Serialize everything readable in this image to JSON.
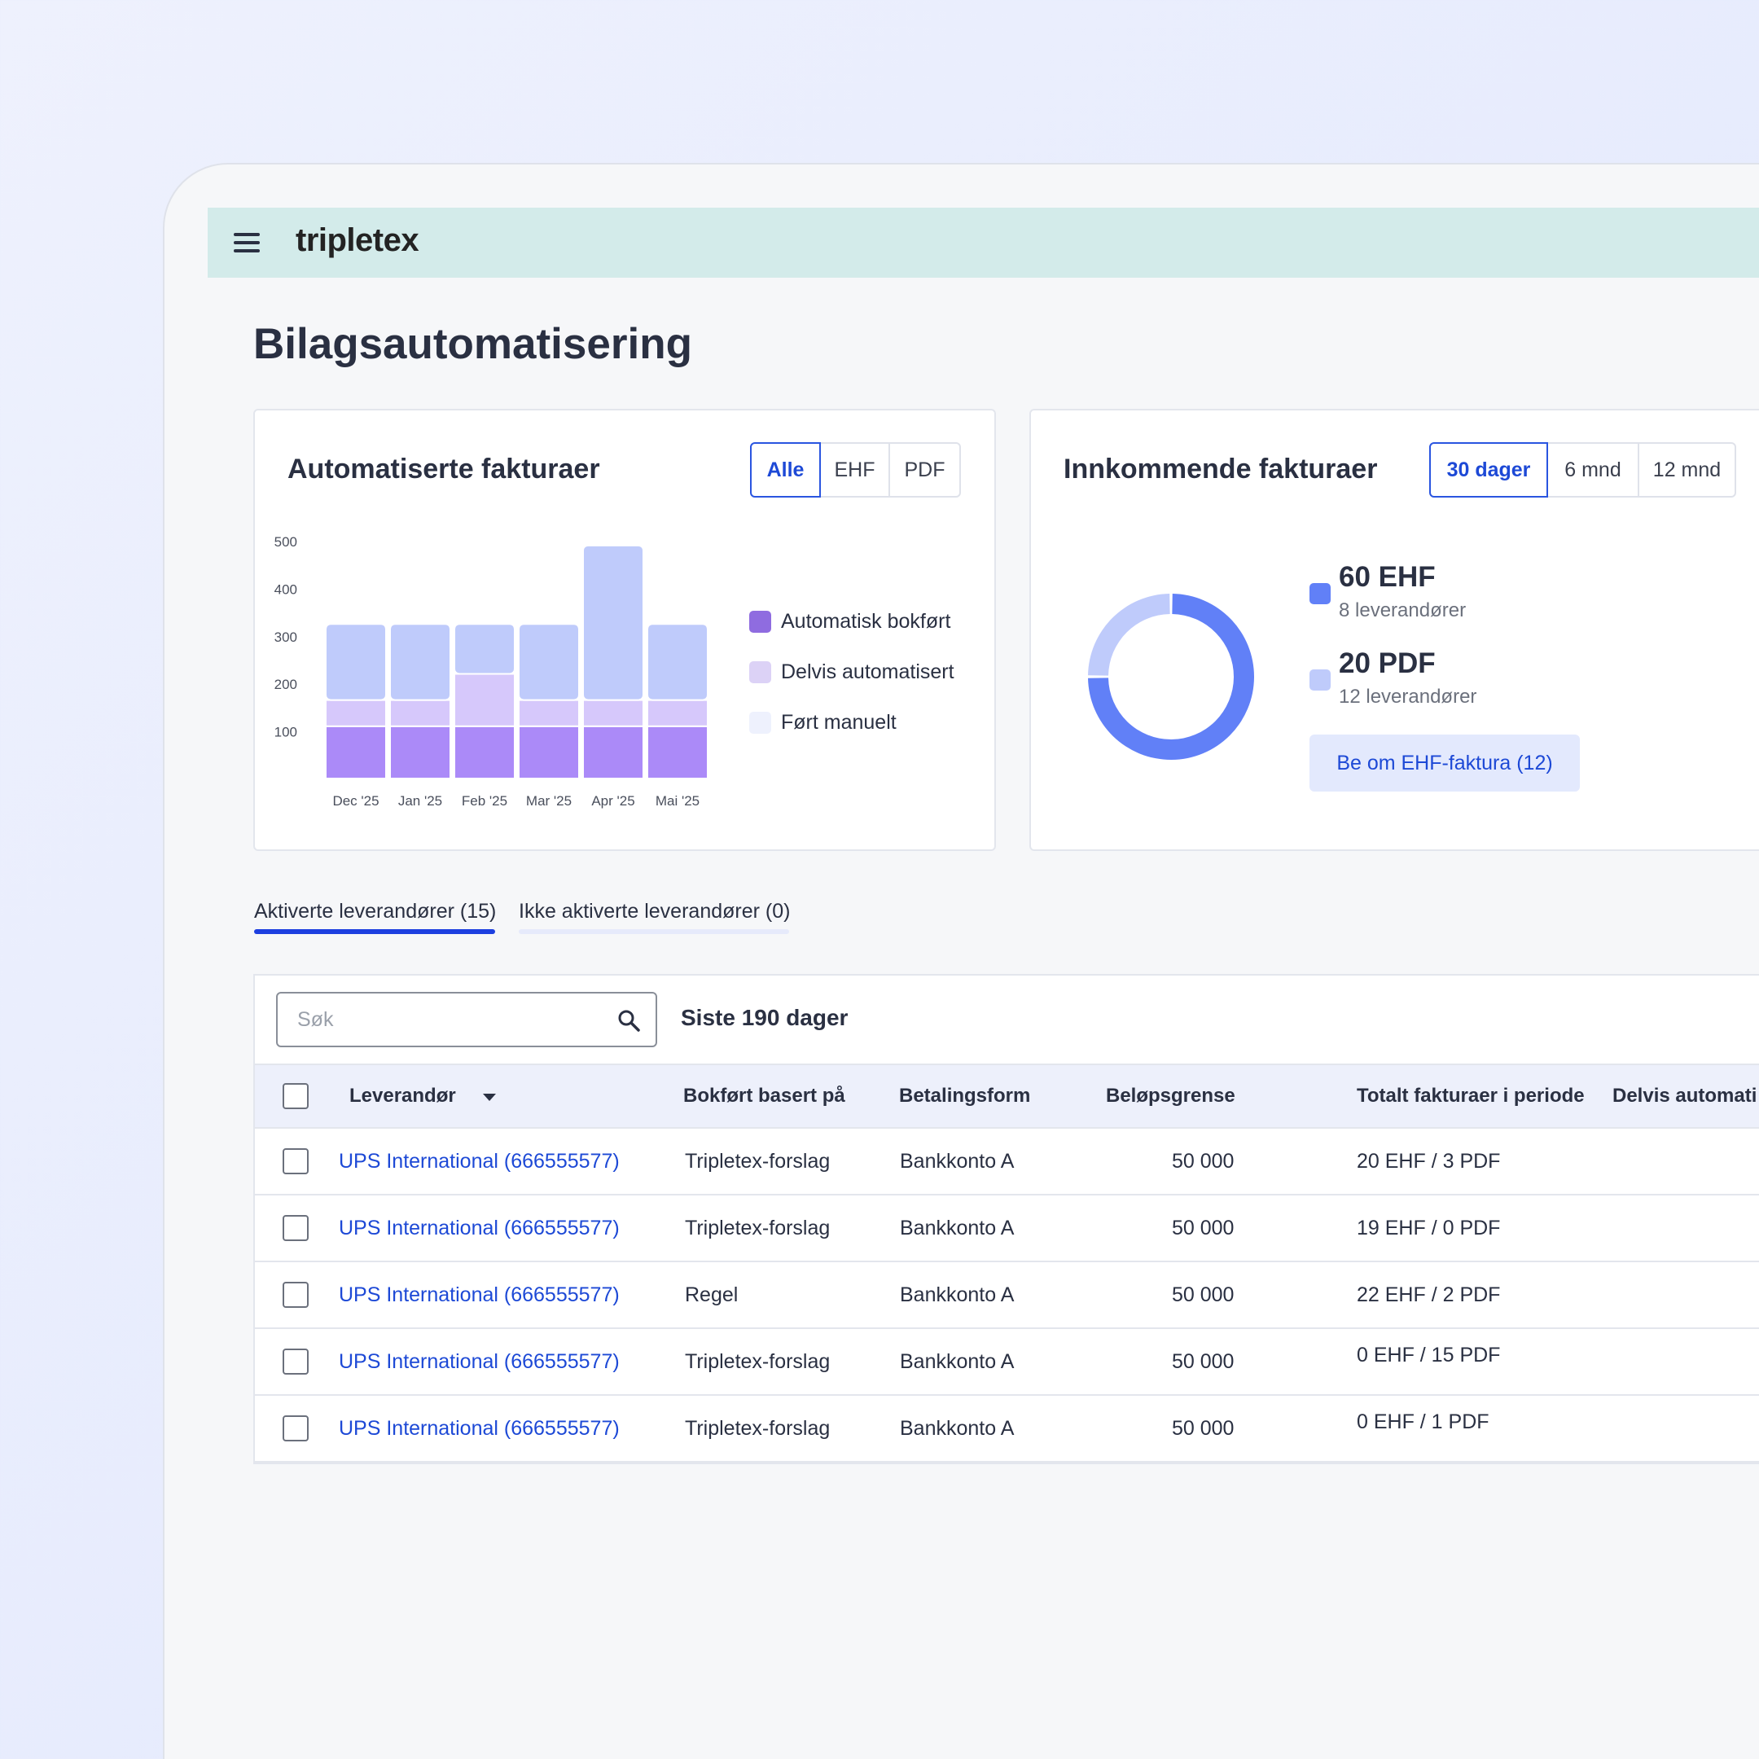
{
  "app": {
    "logo": "tripletex",
    "page_title": "Bilagsautomatisering"
  },
  "automated_card": {
    "title": "Automatiserte fakturaer",
    "filters": [
      "Alle",
      "EHF",
      "PDF"
    ],
    "active_filter": "Alle",
    "legend": [
      {
        "label": "Automatisk bokført",
        "color": "#8f6ce0"
      },
      {
        "label": "Delvis automatisert",
        "color": "#dcd2f6"
      },
      {
        "label": "Ført manuelt",
        "color": "#eef1fd"
      }
    ]
  },
  "chart_data": [
    {
      "type": "bar",
      "stacked": true,
      "categories": [
        "Dec '25",
        "Jan '25",
        "Feb '25",
        "Mar '25",
        "Apr '25",
        "Mai '25"
      ],
      "y_ticks": [
        100,
        200,
        300,
        400,
        500
      ],
      "ylim": [
        0,
        500
      ],
      "series": [
        {
          "name": "Automatisk bokført",
          "values": [
            110,
            110,
            110,
            110,
            110,
            110
          ],
          "color": "#ab8af8"
        },
        {
          "name": "Delvis automatisert",
          "values": [
            55,
            55,
            110,
            55,
            55,
            55
          ],
          "color": "#d6c8fb"
        },
        {
          "name": "Ført manuelt",
          "values": [
            160,
            160,
            105,
            160,
            325,
            160
          ],
          "color": "#bfcbfb"
        }
      ]
    },
    {
      "type": "pie",
      "donut": true,
      "labels": [
        "EHF",
        "PDF"
      ],
      "values": [
        60,
        20
      ],
      "colors": [
        "#6180f7",
        "#bfcbfb"
      ]
    }
  ],
  "incoming_card": {
    "title": "Innkommende fakturaer",
    "filters": [
      "30 dager",
      "6 mnd",
      "12 mnd"
    ],
    "active_filter": "30 dager",
    "ehf_value": "60 EHF",
    "ehf_sub": "8 leverandører",
    "pdf_value": "20 PDF",
    "pdf_sub": "12 leverandører",
    "request_button": "Be om EHF-faktura (12)"
  },
  "tabs": [
    {
      "label": "Aktiverte leverandører (15)",
      "active": true
    },
    {
      "label": "Ikke aktiverte leverandører (0)",
      "active": false
    }
  ],
  "table": {
    "search_placeholder": "Søk",
    "period": "Siste 190 dager",
    "columns": [
      "Leverandør",
      "Bokført basert på",
      "Betalingsform",
      "Beløpsgrense",
      "Totalt fakturaer i periode",
      "Delvis automati"
    ],
    "rows": [
      {
        "supplier": "UPS International (666555577)",
        "basis": "Tripletex-forslag",
        "payment": "Bankkonto A",
        "limit": "50 000",
        "total": "20 EHF / 3 PDF"
      },
      {
        "supplier": "UPS International (666555577)",
        "basis": "Tripletex-forslag",
        "payment": "Bankkonto A",
        "limit": "50 000",
        "total": "19 EHF / 0 PDF"
      },
      {
        "supplier": "UPS International (666555577)",
        "basis": "Regel",
        "payment": "Bankkonto A",
        "limit": "50 000",
        "total": "22 EHF / 2 PDF"
      },
      {
        "supplier": "UPS International (666555577)",
        "basis": "Tripletex-forslag",
        "payment": "Bankkonto A",
        "limit": "50 000",
        "total": "0 EHF / 15 PDF"
      },
      {
        "supplier": "UPS International (666555577)",
        "basis": "Tripletex-forslag",
        "payment": "Bankkonto A",
        "limit": "50 000",
        "total": "0 EHF / 1 PDF"
      }
    ]
  }
}
